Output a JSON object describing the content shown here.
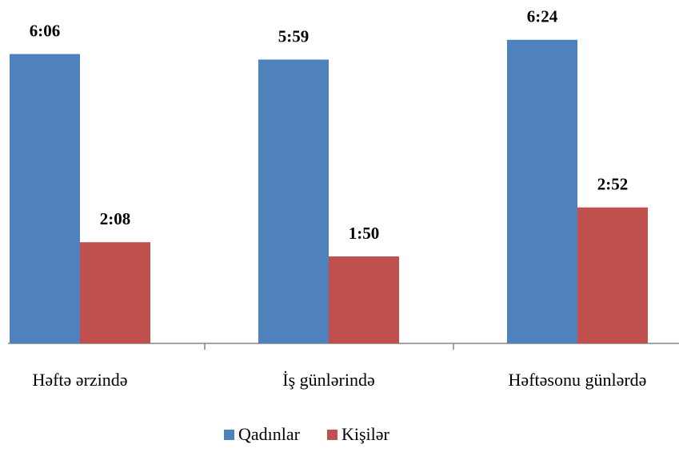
{
  "chart_data": {
    "type": "bar",
    "categories": [
      "Həftə ərzində",
      "İş günlərində",
      "Həftəsonu günlərdə"
    ],
    "series": [
      {
        "name": "Qadınlar",
        "color": "#4f81bd",
        "values": [
          366,
          359,
          384
        ],
        "value_labels": [
          "6:06",
          "5:59",
          "6:24"
        ]
      },
      {
        "name": "Kişilər",
        "color": "#c0504d",
        "values": [
          128,
          110,
          172
        ],
        "value_labels": [
          "2:08",
          "1:50",
          "2:52"
        ]
      }
    ],
    "legend": "bottom"
  }
}
